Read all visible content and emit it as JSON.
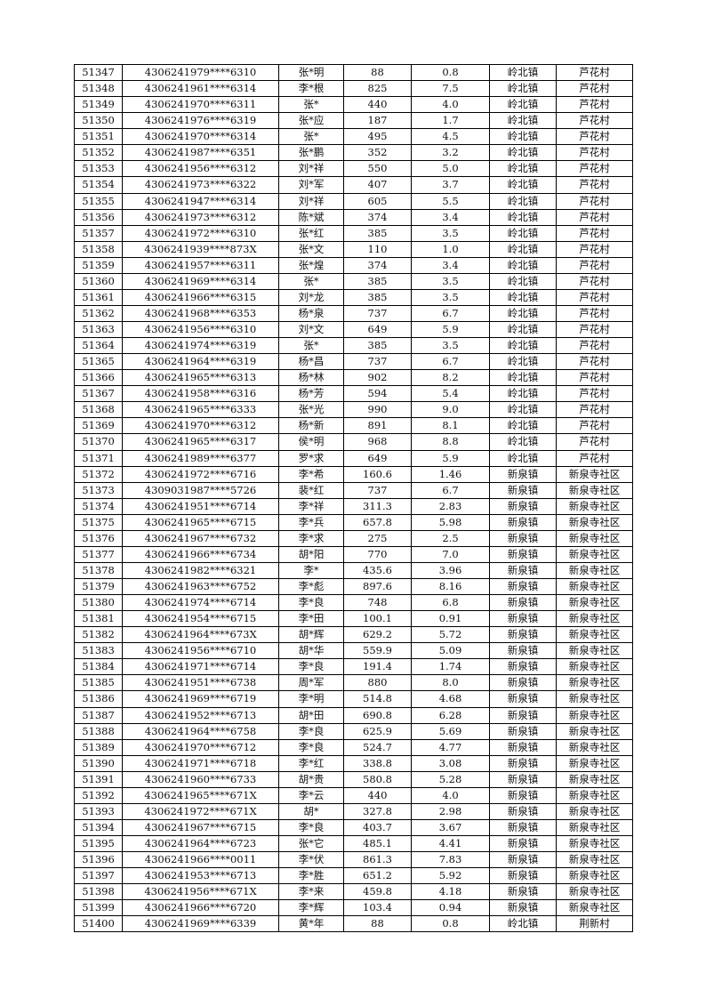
{
  "rows": [
    [
      "51347",
      "4306241979****6310",
      "张*明",
      "88",
      "0.8",
      "岭北镇",
      "芦花村"
    ],
    [
      "51348",
      "4306241961****6314",
      "李*根",
      "825",
      "7.5",
      "岭北镇",
      "芦花村"
    ],
    [
      "51349",
      "4306241970****6311",
      "张*",
      "440",
      "4.0",
      "岭北镇",
      "芦花村"
    ],
    [
      "51350",
      "4306241976****6319",
      "张*应",
      "187",
      "1.7",
      "岭北镇",
      "芦花村"
    ],
    [
      "51351",
      "4306241970****6314",
      "张*",
      "495",
      "4.5",
      "岭北镇",
      "芦花村"
    ],
    [
      "51352",
      "4306241987****6351",
      "张*鹏",
      "352",
      "3.2",
      "岭北镇",
      "芦花村"
    ],
    [
      "51353",
      "4306241956****6312",
      "刘*祥",
      "550",
      "5.0",
      "岭北镇",
      "芦花村"
    ],
    [
      "51354",
      "4306241973****6322",
      "刘*军",
      "407",
      "3.7",
      "岭北镇",
      "芦花村"
    ],
    [
      "51355",
      "4306241947****6314",
      "刘*祥",
      "605",
      "5.5",
      "岭北镇",
      "芦花村"
    ],
    [
      "51356",
      "4306241973****6312",
      "陈*斌",
      "374",
      "3.4",
      "岭北镇",
      "芦花村"
    ],
    [
      "51357",
      "4306241972****6310",
      "张*红",
      "385",
      "3.5",
      "岭北镇",
      "芦花村"
    ],
    [
      "51358",
      "4306241939****873X",
      "张*文",
      "110",
      "1.0",
      "岭北镇",
      "芦花村"
    ],
    [
      "51359",
      "4306241957****6311",
      "张*煌",
      "374",
      "3.4",
      "岭北镇",
      "芦花村"
    ],
    [
      "51360",
      "4306241969****6314",
      "张*",
      "385",
      "3.5",
      "岭北镇",
      "芦花村"
    ],
    [
      "51361",
      "4306241966****6315",
      "刘*龙",
      "385",
      "3.5",
      "岭北镇",
      "芦花村"
    ],
    [
      "51362",
      "4306241968****6353",
      "杨*泉",
      "737",
      "6.7",
      "岭北镇",
      "芦花村"
    ],
    [
      "51363",
      "4306241956****6310",
      "刘*文",
      "649",
      "5.9",
      "岭北镇",
      "芦花村"
    ],
    [
      "51364",
      "4306241974****6319",
      "张*",
      "385",
      "3.5",
      "岭北镇",
      "芦花村"
    ],
    [
      "51365",
      "4306241964****6319",
      "杨*昌",
      "737",
      "6.7",
      "岭北镇",
      "芦花村"
    ],
    [
      "51366",
      "4306241965****6313",
      "杨*林",
      "902",
      "8.2",
      "岭北镇",
      "芦花村"
    ],
    [
      "51367",
      "4306241958****6316",
      "杨*芳",
      "594",
      "5.4",
      "岭北镇",
      "芦花村"
    ],
    [
      "51368",
      "4306241965****6333",
      "张*光",
      "990",
      "9.0",
      "岭北镇",
      "芦花村"
    ],
    [
      "51369",
      "4306241970****6312",
      "杨*新",
      "891",
      "8.1",
      "岭北镇",
      "芦花村"
    ],
    [
      "51370",
      "4306241965****6317",
      "侯*明",
      "968",
      "8.8",
      "岭北镇",
      "芦花村"
    ],
    [
      "51371",
      "4306241989****6377",
      "罗*求",
      "649",
      "5.9",
      "岭北镇",
      "芦花村"
    ],
    [
      "51372",
      "4306241972****6716",
      "李*希",
      "160.6",
      "1.46",
      "新泉镇",
      "新泉寺社区"
    ],
    [
      "51373",
      "4309031987****5726",
      "裴*红",
      "737",
      "6.7",
      "新泉镇",
      "新泉寺社区"
    ],
    [
      "51374",
      "4306241951****6714",
      "李*祥",
      "311.3",
      "2.83",
      "新泉镇",
      "新泉寺社区"
    ],
    [
      "51375",
      "4306241965****6715",
      "李*兵",
      "657.8",
      "5.98",
      "新泉镇",
      "新泉寺社区"
    ],
    [
      "51376",
      "4306241967****6732",
      "李*求",
      "275",
      "2.5",
      "新泉镇",
      "新泉寺社区"
    ],
    [
      "51377",
      "4306241966****6734",
      "胡*阳",
      "770",
      "7.0",
      "新泉镇",
      "新泉寺社区"
    ],
    [
      "51378",
      "4306241982****6321",
      "李*",
      "435.6",
      "3.96",
      "新泉镇",
      "新泉寺社区"
    ],
    [
      "51379",
      "4306241963****6752",
      "李*彪",
      "897.6",
      "8.16",
      "新泉镇",
      "新泉寺社区"
    ],
    [
      "51380",
      "4306241974****6714",
      "李*良",
      "748",
      "6.8",
      "新泉镇",
      "新泉寺社区"
    ],
    [
      "51381",
      "4306241954****6715",
      "李*田",
      "100.1",
      "0.91",
      "新泉镇",
      "新泉寺社区"
    ],
    [
      "51382",
      "4306241964****673X",
      "胡*辉",
      "629.2",
      "5.72",
      "新泉镇",
      "新泉寺社区"
    ],
    [
      "51383",
      "4306241956****6710",
      "胡*华",
      "559.9",
      "5.09",
      "新泉镇",
      "新泉寺社区"
    ],
    [
      "51384",
      "4306241971****6714",
      "李*良",
      "191.4",
      "1.74",
      "新泉镇",
      "新泉寺社区"
    ],
    [
      "51385",
      "4306241951****6738",
      "周*军",
      "880",
      "8.0",
      "新泉镇",
      "新泉寺社区"
    ],
    [
      "51386",
      "4306241969****6719",
      "李*明",
      "514.8",
      "4.68",
      "新泉镇",
      "新泉寺社区"
    ],
    [
      "51387",
      "4306241952****6713",
      "胡*田",
      "690.8",
      "6.28",
      "新泉镇",
      "新泉寺社区"
    ],
    [
      "51388",
      "4306241964****6758",
      "李*良",
      "625.9",
      "5.69",
      "新泉镇",
      "新泉寺社区"
    ],
    [
      "51389",
      "4306241970****6712",
      "李*良",
      "524.7",
      "4.77",
      "新泉镇",
      "新泉寺社区"
    ],
    [
      "51390",
      "4306241971****6718",
      "李*红",
      "338.8",
      "3.08",
      "新泉镇",
      "新泉寺社区"
    ],
    [
      "51391",
      "4306241960****6733",
      "胡*贵",
      "580.8",
      "5.28",
      "新泉镇",
      "新泉寺社区"
    ],
    [
      "51392",
      "4306241965****671X",
      "李*云",
      "440",
      "4.0",
      "新泉镇",
      "新泉寺社区"
    ],
    [
      "51393",
      "4306241972****671X",
      "胡*",
      "327.8",
      "2.98",
      "新泉镇",
      "新泉寺社区"
    ],
    [
      "51394",
      "4306241967****6715",
      "李*良",
      "403.7",
      "3.67",
      "新泉镇",
      "新泉寺社区"
    ],
    [
      "51395",
      "4306241964****6723",
      "张*它",
      "485.1",
      "4.41",
      "新泉镇",
      "新泉寺社区"
    ],
    [
      "51396",
      "4306241966****0011",
      "李*伏",
      "861.3",
      "7.83",
      "新泉镇",
      "新泉寺社区"
    ],
    [
      "51397",
      "4306241953****6713",
      "李*胜",
      "651.2",
      "5.92",
      "新泉镇",
      "新泉寺社区"
    ],
    [
      "51398",
      "4306241956****671X",
      "李*来",
      "459.8",
      "4.18",
      "新泉镇",
      "新泉寺社区"
    ],
    [
      "51399",
      "4306241966****6720",
      "李*辉",
      "103.4",
      "0.94",
      "新泉镇",
      "新泉寺社区"
    ],
    [
      "51400",
      "4306241969****6339",
      "黄*年",
      "88",
      "0.8",
      "岭北镇",
      "荆新村"
    ]
  ]
}
